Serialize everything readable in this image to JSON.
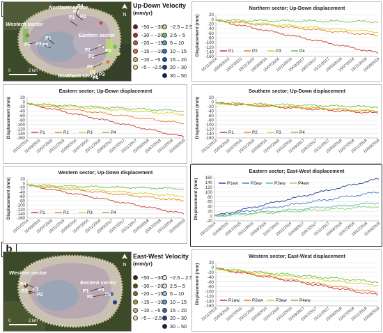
{
  "labels": {
    "a": "a",
    "b": "b"
  },
  "maps": {
    "a": {
      "sectors": [
        "Northern sector",
        "Eastern sector",
        "Western sector",
        "Southern sector"
      ],
      "points": [
        "P1",
        "P2",
        "P3",
        "P4"
      ],
      "north": "N",
      "scale": "2 km",
      "zero": "0"
    },
    "b": {
      "sectors": [
        "Western sector",
        "Eastern sector"
      ],
      "points": [
        "P1",
        "P2",
        "P3",
        "P4"
      ],
      "north": "N",
      "scale": "2 km",
      "zero": "0"
    }
  },
  "legends": {
    "updown": {
      "title": "Up-Down Velocity",
      "unit": "(mm/yr)",
      "col1": [
        {
          "label": "−50 – −30",
          "color": "#7a1010"
        },
        {
          "label": "−30 – −20",
          "color": "#b02828"
        },
        {
          "label": "−20 – −15",
          "color": "#d0502a"
        },
        {
          "label": "−15 – −10",
          "color": "#e07a30"
        },
        {
          "label": "−10 – −5",
          "color": "#e8c04a"
        },
        {
          "label": "−5 – −2.5",
          "color": "#ecdf9a"
        }
      ],
      "col2": [
        {
          "label": "−2.5 – 2.5",
          "color": "#b8df68"
        },
        {
          "label": "2.5 – 5",
          "color": "#70c050"
        },
        {
          "label": "5 – 10",
          "color": "#3aa8c8"
        },
        {
          "label": "10 – 15",
          "color": "#2a78c8"
        },
        {
          "label": "15 – 20",
          "color": "#2050b0"
        },
        {
          "label": "20 – 30",
          "color": "#1a3590"
        },
        {
          "label": "30 – 50",
          "color": "#101c60"
        }
      ]
    },
    "eastwest": {
      "title": "East-West Velocity",
      "unit": "(mm/yr)",
      "col1": [
        {
          "label": "−50 – −30",
          "color": "#3a2800"
        },
        {
          "label": "−30 – −20",
          "color": "#6a4a10"
        },
        {
          "label": "−20 – −15",
          "color": "#8a6a20"
        },
        {
          "label": "−15 – −10",
          "color": "#b09a40"
        },
        {
          "label": "−10 – −5",
          "color": "#d0c070"
        },
        {
          "label": "−5 – −2.5",
          "color": "#ece0a8"
        }
      ],
      "col2": [
        {
          "label": "−2.5 – 2.5",
          "color": "#f4f4e8"
        },
        {
          "label": "2.5 – 5",
          "color": "#c8e8f4"
        },
        {
          "label": "5 – 10",
          "color": "#90c8e8"
        },
        {
          "label": "10 – 15",
          "color": "#5a98d0"
        },
        {
          "label": "15 – 20",
          "color": "#3468b0"
        },
        {
          "label": "20 – 30",
          "color": "#1a4088"
        },
        {
          "label": "30 – 50",
          "color": "#0c1c50"
        }
      ]
    }
  },
  "colors": {
    "P1": "#c0392b",
    "P2": "#e67e22",
    "P3": "#d4d020",
    "P4": "#6cc04a",
    "P1ew": "#1f3a93",
    "P2ew": "#3b7bd0",
    "P3ew": "#4dbda5",
    "P4ew": "#8ed06a"
  },
  "chart_data": [
    {
      "id": "northern",
      "type": "line",
      "title": "Northern sector; Up-Down displacement",
      "ylabel": "Displacement (mm)",
      "ylim": [
        -160,
        20
      ],
      "yticks": [
        20,
        0,
        -20,
        -40,
        -60,
        -80,
        -100,
        -120,
        -140,
        -160
      ],
      "xticks": [
        "15/11/2014",
        "15/03/2015",
        "15/07/2015",
        "15/11/2015",
        "15/03/2016",
        "15/07/2016",
        "15/11/2016",
        "15/03/2017",
        "15/07/2017",
        "15/11/2017",
        "15/03/2018",
        "15/07/2018",
        "15/11/2018",
        "15/03/2019"
      ],
      "legend": "bottom-left",
      "series": [
        {
          "name": "P1",
          "color_key": "P1",
          "start": -5,
          "end": -145
        },
        {
          "name": "P2",
          "color_key": "P2",
          "start": -5,
          "end": -70
        },
        {
          "name": "P3",
          "color_key": "P3",
          "start": -5,
          "end": -55
        },
        {
          "name": "P4",
          "color_key": "P4",
          "start": -5,
          "end": -10
        }
      ]
    },
    {
      "id": "eastern",
      "type": "line",
      "title": "Eastern sector; Up-Down displacement",
      "ylabel": "Displacement (mm)",
      "ylim": [
        -160,
        20
      ],
      "yticks": [
        20,
        0,
        -20,
        -40,
        -60,
        -80,
        -100,
        -120,
        -140,
        -160
      ],
      "xticks": [
        "15/11/2014",
        "15/03/2015",
        "15/07/2015",
        "15/11/2015",
        "15/03/2016",
        "15/07/2016",
        "15/11/2016",
        "15/03/2017",
        "15/07/2017",
        "15/11/2017",
        "15/03/2018",
        "15/07/2018",
        "15/11/2018",
        "15/03/2019"
      ],
      "legend": "bottom-left",
      "series": [
        {
          "name": "P1",
          "color_key": "P1",
          "start": -8,
          "end": -155
        },
        {
          "name": "P2",
          "color_key": "P2",
          "start": -8,
          "end": -95
        },
        {
          "name": "P3",
          "color_key": "P3",
          "start": -8,
          "end": -55
        },
        {
          "name": "P4",
          "color_key": "P4",
          "start": -8,
          "end": -40
        }
      ]
    },
    {
      "id": "southern",
      "type": "line",
      "title": "Southern sector; Up-Down displacement",
      "ylabel": "Displacement (mm)",
      "ylim": [
        -160,
        20
      ],
      "yticks": [
        20,
        0,
        -20,
        -40,
        -60,
        -80,
        -100,
        -120,
        -140,
        -160
      ],
      "xticks": [
        "15/11/2014",
        "15/03/2015",
        "15/07/2015",
        "15/11/2015",
        "15/03/2016",
        "15/07/2016",
        "15/11/2016",
        "15/03/2017",
        "15/07/2017",
        "15/11/2017",
        "15/03/2018",
        "15/07/2018",
        "15/11/2018",
        "15/03/2019"
      ],
      "legend": "bottom-left",
      "series": [
        {
          "name": "P1",
          "color_key": "P1",
          "start": -5,
          "end": -50
        },
        {
          "name": "P2",
          "color_key": "P2",
          "start": -5,
          "end": -42
        },
        {
          "name": "P3",
          "color_key": "P3",
          "start": -5,
          "end": -40
        },
        {
          "name": "P4",
          "color_key": "P4",
          "start": -5,
          "end": -22
        }
      ]
    },
    {
      "id": "western",
      "type": "line",
      "title": "Western sector; Up-Down displacement",
      "ylabel": "Displacement (mm)",
      "ylim": [
        -160,
        20
      ],
      "yticks": [
        20,
        0,
        -20,
        -40,
        -60,
        -80,
        -100,
        -120,
        -140,
        -160
      ],
      "xticks": [
        "15/11/2014",
        "15/03/2015",
        "15/07/2015",
        "15/11/2015",
        "15/03/2016",
        "15/07/2016",
        "15/11/2016",
        "15/03/2017",
        "15/07/2017",
        "15/11/2017",
        "15/03/2018",
        "15/07/2018",
        "15/11/2018",
        "15/03/2019"
      ],
      "legend": "bottom-left",
      "series": [
        {
          "name": "P1",
          "color_key": "P1",
          "start": -8,
          "end": -140
        },
        {
          "name": "P2",
          "color_key": "P2",
          "start": -8,
          "end": -80
        },
        {
          "name": "P3",
          "color_key": "P3",
          "start": -8,
          "end": -60
        },
        {
          "name": "P4",
          "color_key": "P4",
          "start": -8,
          "end": -25
        }
      ]
    },
    {
      "id": "eastern_ew",
      "type": "line",
      "title": "Eastern sector; East-West displacement",
      "ylabel": "Displacement (mm)",
      "ylim": [
        -20,
        160
      ],
      "yticks": [
        160,
        140,
        120,
        100,
        80,
        60,
        40,
        20,
        0,
        -20
      ],
      "xticks": [
        "15/11/2014",
        "15/03/2015",
        "15/07/2015",
        "15/11/2015",
        "15/03/2016",
        "15/07/2016",
        "15/11/2016",
        "15/03/2017",
        "15/07/2017",
        "15/11/2017",
        "15/03/2018",
        "15/07/2018",
        "15/11/2018",
        "15/03/2019"
      ],
      "legend": "top-left",
      "series": [
        {
          "name": "P1ew",
          "color_key": "P1ew",
          "start": 0,
          "end": 155
        },
        {
          "name": "P2ew",
          "color_key": "P2ew",
          "start": 0,
          "end": 100
        },
        {
          "name": "P3ew",
          "color_key": "P3ew",
          "start": 0,
          "end": 55
        },
        {
          "name": "P4ew",
          "color_key": "P4ew",
          "start": 0,
          "end": 40
        }
      ]
    },
    {
      "id": "western_ew",
      "type": "line",
      "title": "Western sector; East-West displacement",
      "ylabel": "Displacement (mm)",
      "ylim": [
        -160,
        20
      ],
      "yticks": [
        20,
        0,
        -20,
        -40,
        -60,
        -80,
        -100,
        -120,
        -140,
        -160
      ],
      "xticks": [
        "15/11/2014",
        "15/03/2015",
        "15/07/2015",
        "15/11/2015",
        "15/03/2016",
        "15/07/2016",
        "15/11/2016",
        "15/03/2017",
        "15/07/2017",
        "15/11/2017",
        "15/03/2018",
        "15/07/2018",
        "15/11/2018",
        "15/03/2019"
      ],
      "legend": "bottom-left",
      "series": [
        {
          "name": "P1ew",
          "color_key": "P1",
          "start": -5,
          "end": -115
        },
        {
          "name": "P2ew",
          "color_key": "P2",
          "start": -5,
          "end": -105
        },
        {
          "name": "P3ew",
          "color_key": "P3",
          "start": -5,
          "end": -75
        },
        {
          "name": "P4ew",
          "color_key": "P4",
          "start": -5,
          "end": -60
        }
      ]
    }
  ]
}
